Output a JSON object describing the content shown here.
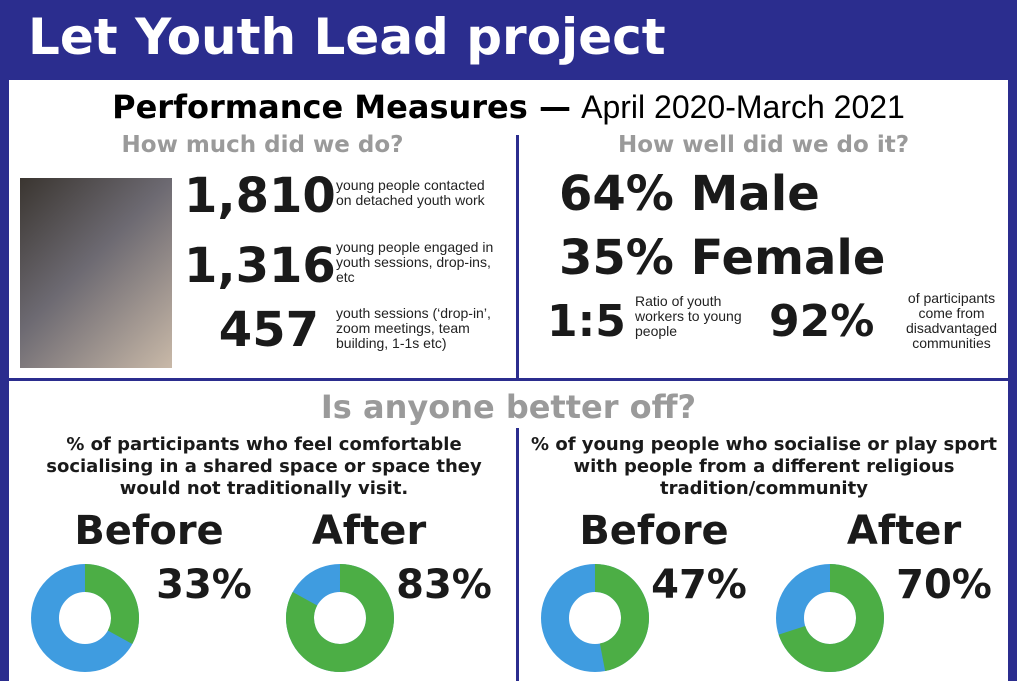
{
  "header": {
    "title": "Let Youth Lead project"
  },
  "subtitle": {
    "bold": "Performance Measures —",
    "period": "April 2020-March 2021"
  },
  "output": {
    "heading": "How much did we do?",
    "stats": [
      {
        "number": "1,810",
        "text": "young people contacted on detached youth work"
      },
      {
        "number": "1,316",
        "text": "young people engaged in youth sessions, drop-ins, etc"
      },
      {
        "number": "457",
        "text": "youth sessions (‘drop-in’, zoom meetings, team building, 1-1s etc)"
      }
    ]
  },
  "quality": {
    "heading": "How well did we do it?",
    "male": "64% Male",
    "female": "35% Female",
    "ratio": {
      "number": "1:5",
      "text": "Ratio of youth workers to young people"
    },
    "disadvantaged": {
      "number": "92%",
      "text": "of participants come from disadvantaged communities"
    }
  },
  "impact": {
    "heading": "Is anyone better off?",
    "measures": [
      {
        "question": "% of participants who feel comfortable socialising in a shared space or space they would not traditionally visit.",
        "before": {
          "label": "Before",
          "value": 33,
          "value_label": "33%"
        },
        "after": {
          "label": "After",
          "value": 83,
          "value_label": "83%"
        }
      },
      {
        "question": "% of young people who socialise or play sport with people from a different religious tradition/community",
        "before": {
          "label": "Before",
          "value": 47,
          "value_label": "47%"
        },
        "after": {
          "label": "After",
          "value": 70,
          "value_label": "70%"
        }
      }
    ]
  }
}
